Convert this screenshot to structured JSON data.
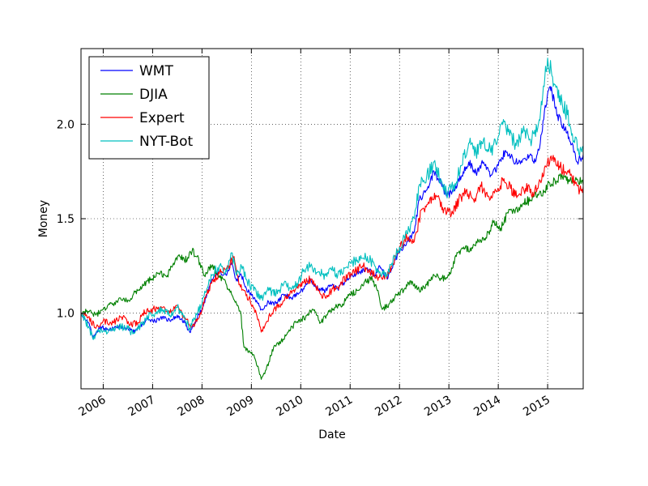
{
  "chart_data": {
    "type": "line",
    "xlabel": "Date",
    "ylabel": "Money",
    "xlim": [
      2005.55,
      2015.72
    ],
    "ylim": [
      0.6,
      2.4
    ],
    "x_ticks": [
      2006,
      2007,
      2008,
      2009,
      2010,
      2011,
      2012,
      2013,
      2014,
      2015
    ],
    "x_tick_labels": [
      "2006",
      "2007",
      "2008",
      "2009",
      "2010",
      "2011",
      "2012",
      "2013",
      "2014",
      "2015"
    ],
    "y_ticks": [
      1.0,
      1.5,
      2.0
    ],
    "y_tick_labels": [
      "1.0",
      "1.5",
      "2.0"
    ],
    "grid": true,
    "legend_position": "upper-left",
    "series": [
      {
        "name": "WMT",
        "color": "#0000ff",
        "points": [
          [
            2005.55,
            1.0
          ],
          [
            2005.7,
            0.95
          ],
          [
            2005.8,
            0.87
          ],
          [
            2005.95,
            0.93
          ],
          [
            2006.1,
            0.91
          ],
          [
            2006.3,
            0.93
          ],
          [
            2006.5,
            0.92
          ],
          [
            2006.6,
            0.9
          ],
          [
            2006.75,
            0.93
          ],
          [
            2006.9,
            0.97
          ],
          [
            2007.05,
            0.96
          ],
          [
            2007.2,
            0.98
          ],
          [
            2007.35,
            0.96
          ],
          [
            2007.5,
            0.99
          ],
          [
            2007.65,
            0.95
          ],
          [
            2007.75,
            0.9
          ],
          [
            2007.85,
            0.95
          ],
          [
            2008.0,
            1.02
          ],
          [
            2008.1,
            1.1
          ],
          [
            2008.2,
            1.18
          ],
          [
            2008.35,
            1.22
          ],
          [
            2008.5,
            1.2
          ],
          [
            2008.6,
            1.27
          ],
          [
            2008.7,
            1.17
          ],
          [
            2008.8,
            1.2
          ],
          [
            2008.9,
            1.13
          ],
          [
            2009.05,
            1.08
          ],
          [
            2009.2,
            1.02
          ],
          [
            2009.35,
            1.06
          ],
          [
            2009.5,
            1.05
          ],
          [
            2009.65,
            1.1
          ],
          [
            2009.8,
            1.08
          ],
          [
            2009.95,
            1.1
          ],
          [
            2010.05,
            1.13
          ],
          [
            2010.2,
            1.18
          ],
          [
            2010.35,
            1.13
          ],
          [
            2010.5,
            1.12
          ],
          [
            2010.6,
            1.15
          ],
          [
            2010.75,
            1.13
          ],
          [
            2010.9,
            1.17
          ],
          [
            2011.05,
            1.2
          ],
          [
            2011.2,
            1.22
          ],
          [
            2011.35,
            1.24
          ],
          [
            2011.5,
            1.2
          ],
          [
            2011.6,
            1.25
          ],
          [
            2011.75,
            1.18
          ],
          [
            2011.9,
            1.28
          ],
          [
            2012.0,
            1.32
          ],
          [
            2012.15,
            1.38
          ],
          [
            2012.3,
            1.43
          ],
          [
            2012.4,
            1.6
          ],
          [
            2012.55,
            1.65
          ],
          [
            2012.7,
            1.75
          ],
          [
            2012.85,
            1.68
          ],
          [
            2012.95,
            1.62
          ],
          [
            2013.1,
            1.65
          ],
          [
            2013.25,
            1.72
          ],
          [
            2013.4,
            1.8
          ],
          [
            2013.55,
            1.74
          ],
          [
            2013.7,
            1.8
          ],
          [
            2013.85,
            1.73
          ],
          [
            2014.0,
            1.78
          ],
          [
            2014.15,
            1.86
          ],
          [
            2014.3,
            1.81
          ],
          [
            2014.45,
            1.79
          ],
          [
            2014.6,
            1.84
          ],
          [
            2014.75,
            1.8
          ],
          [
            2014.85,
            1.9
          ],
          [
            2014.95,
            2.1
          ],
          [
            2015.05,
            2.2
          ],
          [
            2015.2,
            2.05
          ],
          [
            2015.35,
            1.97
          ],
          [
            2015.5,
            1.9
          ],
          [
            2015.6,
            1.8
          ],
          [
            2015.72,
            1.84
          ]
        ]
      },
      {
        "name": "DJIA",
        "color": "#008000",
        "points": [
          [
            2005.55,
            1.0
          ],
          [
            2005.7,
            1.01
          ],
          [
            2005.85,
            0.99
          ],
          [
            2006.0,
            1.02
          ],
          [
            2006.2,
            1.05
          ],
          [
            2006.35,
            1.08
          ],
          [
            2006.5,
            1.07
          ],
          [
            2006.7,
            1.12
          ],
          [
            2006.9,
            1.17
          ],
          [
            2007.15,
            1.21
          ],
          [
            2007.3,
            1.2
          ],
          [
            2007.45,
            1.27
          ],
          [
            2007.55,
            1.3
          ],
          [
            2007.7,
            1.28
          ],
          [
            2007.8,
            1.33
          ],
          [
            2007.9,
            1.3
          ],
          [
            2008.05,
            1.2
          ],
          [
            2008.2,
            1.25
          ],
          [
            2008.35,
            1.2
          ],
          [
            2008.5,
            1.15
          ],
          [
            2008.6,
            1.1
          ],
          [
            2008.7,
            1.05
          ],
          [
            2008.78,
            1.01
          ],
          [
            2008.85,
            0.82
          ],
          [
            2008.95,
            0.8
          ],
          [
            2009.05,
            0.78
          ],
          [
            2009.15,
            0.7
          ],
          [
            2009.2,
            0.65
          ],
          [
            2009.3,
            0.7
          ],
          [
            2009.45,
            0.82
          ],
          [
            2009.6,
            0.85
          ],
          [
            2009.75,
            0.9
          ],
          [
            2009.9,
            0.95
          ],
          [
            2010.1,
            0.98
          ],
          [
            2010.25,
            1.02
          ],
          [
            2010.4,
            0.95
          ],
          [
            2010.55,
            1.0
          ],
          [
            2010.7,
            1.03
          ],
          [
            2010.85,
            1.05
          ],
          [
            2011.0,
            1.1
          ],
          [
            2011.15,
            1.12
          ],
          [
            2011.3,
            1.17
          ],
          [
            2011.45,
            1.18
          ],
          [
            2011.55,
            1.12
          ],
          [
            2011.65,
            1.02
          ],
          [
            2011.8,
            1.05
          ],
          [
            2011.95,
            1.1
          ],
          [
            2012.1,
            1.13
          ],
          [
            2012.25,
            1.17
          ],
          [
            2012.4,
            1.12
          ],
          [
            2012.55,
            1.15
          ],
          [
            2012.7,
            1.2
          ],
          [
            2012.85,
            1.18
          ],
          [
            2013.0,
            1.2
          ],
          [
            2013.15,
            1.3
          ],
          [
            2013.3,
            1.35
          ],
          [
            2013.45,
            1.33
          ],
          [
            2013.6,
            1.38
          ],
          [
            2013.75,
            1.4
          ],
          [
            2013.9,
            1.48
          ],
          [
            2014.05,
            1.45
          ],
          [
            2014.2,
            1.53
          ],
          [
            2014.35,
            1.55
          ],
          [
            2014.5,
            1.58
          ],
          [
            2014.65,
            1.6
          ],
          [
            2014.8,
            1.63
          ],
          [
            2014.9,
            1.62
          ],
          [
            2015.0,
            1.68
          ],
          [
            2015.15,
            1.7
          ],
          [
            2015.3,
            1.72
          ],
          [
            2015.45,
            1.7
          ],
          [
            2015.6,
            1.71
          ],
          [
            2015.72,
            1.68
          ]
        ]
      },
      {
        "name": "Expert",
        "color": "#ff0000",
        "points": [
          [
            2005.55,
            1.0
          ],
          [
            2005.7,
            0.98
          ],
          [
            2005.85,
            0.92
          ],
          [
            2006.0,
            0.96
          ],
          [
            2006.2,
            0.95
          ],
          [
            2006.4,
            0.98
          ],
          [
            2006.55,
            0.94
          ],
          [
            2006.7,
            0.95
          ],
          [
            2006.8,
            1.0
          ],
          [
            2007.0,
            1.02
          ],
          [
            2007.2,
            1.03
          ],
          [
            2007.35,
            1.0
          ],
          [
            2007.5,
            1.04
          ],
          [
            2007.65,
            0.97
          ],
          [
            2007.8,
            0.93
          ],
          [
            2007.95,
            0.98
          ],
          [
            2008.1,
            1.1
          ],
          [
            2008.25,
            1.18
          ],
          [
            2008.4,
            1.22
          ],
          [
            2008.55,
            1.25
          ],
          [
            2008.65,
            1.3
          ],
          [
            2008.75,
            1.15
          ],
          [
            2008.85,
            1.12
          ],
          [
            2008.95,
            1.08
          ],
          [
            2009.1,
            1.0
          ],
          [
            2009.2,
            0.9
          ],
          [
            2009.3,
            0.95
          ],
          [
            2009.45,
            1.02
          ],
          [
            2009.6,
            1.05
          ],
          [
            2009.75,
            1.1
          ],
          [
            2009.9,
            1.13
          ],
          [
            2010.05,
            1.16
          ],
          [
            2010.2,
            1.18
          ],
          [
            2010.35,
            1.12
          ],
          [
            2010.5,
            1.08
          ],
          [
            2010.65,
            1.13
          ],
          [
            2010.8,
            1.15
          ],
          [
            2010.95,
            1.2
          ],
          [
            2011.1,
            1.22
          ],
          [
            2011.25,
            1.25
          ],
          [
            2011.4,
            1.22
          ],
          [
            2011.55,
            1.19
          ],
          [
            2011.7,
            1.18
          ],
          [
            2011.85,
            1.25
          ],
          [
            2012.0,
            1.35
          ],
          [
            2012.15,
            1.4
          ],
          [
            2012.3,
            1.38
          ],
          [
            2012.45,
            1.55
          ],
          [
            2012.6,
            1.58
          ],
          [
            2012.75,
            1.62
          ],
          [
            2012.9,
            1.55
          ],
          [
            2013.05,
            1.52
          ],
          [
            2013.2,
            1.6
          ],
          [
            2013.35,
            1.65
          ],
          [
            2013.5,
            1.6
          ],
          [
            2013.65,
            1.67
          ],
          [
            2013.8,
            1.62
          ],
          [
            2013.95,
            1.65
          ],
          [
            2014.1,
            1.7
          ],
          [
            2014.25,
            1.66
          ],
          [
            2014.4,
            1.62
          ],
          [
            2014.55,
            1.66
          ],
          [
            2014.7,
            1.64
          ],
          [
            2014.85,
            1.7
          ],
          [
            2014.95,
            1.78
          ],
          [
            2015.1,
            1.82
          ],
          [
            2015.25,
            1.77
          ],
          [
            2015.4,
            1.75
          ],
          [
            2015.55,
            1.7
          ],
          [
            2015.65,
            1.65
          ],
          [
            2015.72,
            1.67
          ]
        ]
      },
      {
        "name": "NYT-Bot",
        "color": "#00bfbf",
        "points": [
          [
            2005.55,
            1.0
          ],
          [
            2005.7,
            0.93
          ],
          [
            2005.8,
            0.86
          ],
          [
            2005.95,
            0.92
          ],
          [
            2006.1,
            0.9
          ],
          [
            2006.3,
            0.93
          ],
          [
            2006.5,
            0.92
          ],
          [
            2006.6,
            0.89
          ],
          [
            2006.75,
            0.93
          ],
          [
            2006.9,
            0.98
          ],
          [
            2007.05,
            1.0
          ],
          [
            2007.2,
            1.02
          ],
          [
            2007.35,
            0.99
          ],
          [
            2007.5,
            1.03
          ],
          [
            2007.65,
            0.98
          ],
          [
            2007.75,
            0.92
          ],
          [
            2007.85,
            0.97
          ],
          [
            2008.0,
            1.05
          ],
          [
            2008.1,
            1.13
          ],
          [
            2008.2,
            1.2
          ],
          [
            2008.35,
            1.25
          ],
          [
            2008.5,
            1.22
          ],
          [
            2008.6,
            1.32
          ],
          [
            2008.7,
            1.2
          ],
          [
            2008.8,
            1.25
          ],
          [
            2008.9,
            1.18
          ],
          [
            2009.05,
            1.12
          ],
          [
            2009.2,
            1.08
          ],
          [
            2009.35,
            1.12
          ],
          [
            2009.5,
            1.1
          ],
          [
            2009.65,
            1.15
          ],
          [
            2009.8,
            1.13
          ],
          [
            2009.95,
            1.16
          ],
          [
            2010.05,
            1.22
          ],
          [
            2010.2,
            1.25
          ],
          [
            2010.35,
            1.22
          ],
          [
            2010.5,
            1.2
          ],
          [
            2010.6,
            1.24
          ],
          [
            2010.75,
            1.2
          ],
          [
            2010.9,
            1.24
          ],
          [
            2011.05,
            1.27
          ],
          [
            2011.2,
            1.28
          ],
          [
            2011.35,
            1.3
          ],
          [
            2011.5,
            1.25
          ],
          [
            2011.6,
            1.22
          ],
          [
            2011.75,
            1.2
          ],
          [
            2011.9,
            1.3
          ],
          [
            2012.0,
            1.35
          ],
          [
            2012.15,
            1.42
          ],
          [
            2012.3,
            1.5
          ],
          [
            2012.4,
            1.68
          ],
          [
            2012.55,
            1.72
          ],
          [
            2012.7,
            1.8
          ],
          [
            2012.85,
            1.7
          ],
          [
            2012.95,
            1.64
          ],
          [
            2013.1,
            1.68
          ],
          [
            2013.25,
            1.78
          ],
          [
            2013.4,
            1.9
          ],
          [
            2013.55,
            1.85
          ],
          [
            2013.7,
            1.92
          ],
          [
            2013.85,
            1.85
          ],
          [
            2013.95,
            1.9
          ],
          [
            2014.05,
            2.0
          ],
          [
            2014.2,
            1.96
          ],
          [
            2014.35,
            1.9
          ],
          [
            2014.5,
            1.96
          ],
          [
            2014.65,
            1.92
          ],
          [
            2014.8,
            1.98
          ],
          [
            2014.9,
            2.15
          ],
          [
            2015.0,
            2.35
          ],
          [
            2015.1,
            2.25
          ],
          [
            2015.25,
            2.15
          ],
          [
            2015.4,
            2.05
          ],
          [
            2015.5,
            1.95
          ],
          [
            2015.62,
            1.87
          ],
          [
            2015.72,
            1.88
          ]
        ]
      }
    ]
  }
}
